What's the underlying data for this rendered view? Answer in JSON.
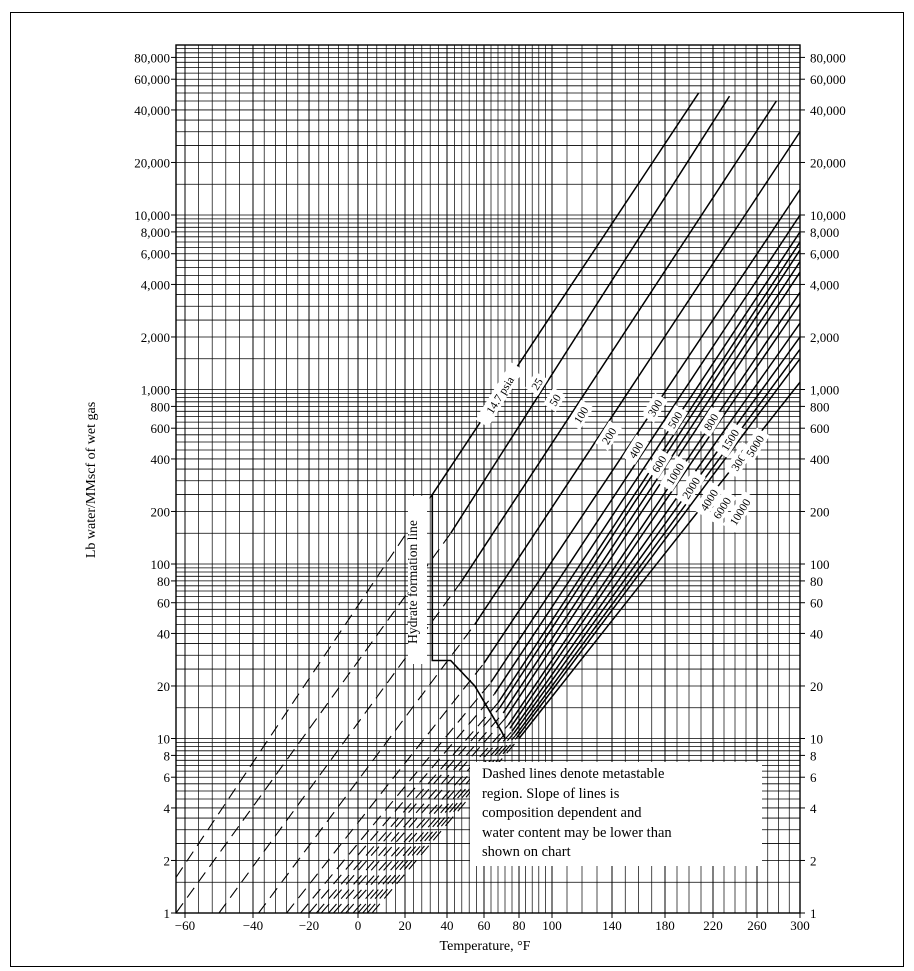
{
  "chart_data": {
    "type": "line",
    "title": "",
    "xlabel": "Temperature, °F",
    "ylabel": "Lb water/MMscf of wet gas",
    "x_unit": "°F",
    "y_scale": "log",
    "xlim": [
      -65,
      300
    ],
    "ylim": [
      1,
      100000
    ],
    "grid": true,
    "x_ticks": [
      -60,
      -40,
      -20,
      0,
      20,
      40,
      60,
      80,
      100,
      140,
      180,
      220,
      260,
      300
    ],
    "x_tick_labels": [
      "−60",
      "−40",
      "−20",
      "0",
      "20",
      "40",
      "60",
      "80",
      "100",
      "140",
      "180",
      "220",
      "260",
      "300"
    ],
    "y_ticks": [
      1,
      2,
      4,
      6,
      8,
      10,
      20,
      40,
      60,
      80,
      100,
      200,
      400,
      600,
      800,
      1000,
      2000,
      4000,
      6000,
      8000,
      10000,
      20000,
      40000,
      60000,
      80000
    ],
    "y_tick_labels": [
      "1",
      "2",
      "4",
      "6",
      "8",
      "10",
      "20",
      "40",
      "60",
      "80",
      "100",
      "200",
      "400",
      "600",
      "800",
      "1,000",
      "2,000",
      "4,000",
      "6,000",
      "8,000",
      "10,000",
      "20,000",
      "40,000",
      "60,000",
      "80,000"
    ],
    "series": [
      {
        "name": "14.7 psia",
        "label": "14.7 psia",
        "solid": [
          [
            33,
            250
          ],
          [
            208,
            50000
          ]
        ],
        "dashed_from": [
          -65,
          1.6
        ]
      },
      {
        "name": "25",
        "label": "25",
        "solid": [
          [
            42,
            150
          ],
          [
            235,
            48000
          ]
        ],
        "dashed_from": [
          -65,
          1.0
        ]
      },
      {
        "name": "50",
        "label": "50",
        "solid": [
          [
            48,
            80
          ],
          [
            278,
            45000
          ]
        ],
        "dashed_from": [
          -50,
          1.0
        ]
      },
      {
        "name": "100",
        "label": "100",
        "solid": [
          [
            55,
            45
          ],
          [
            300,
            30000
          ]
        ],
        "dashed_from": [
          -38,
          1.0
        ]
      },
      {
        "name": "200",
        "label": "200",
        "solid": [
          [
            60,
            27
          ],
          [
            300,
            14000
          ]
        ],
        "dashed_from": [
          -28,
          1.0
        ]
      },
      {
        "name": "300",
        "label": "300",
        "solid": [
          [
            64,
            21
          ],
          [
            300,
            10000
          ]
        ],
        "dashed_from": [
          -23,
          1.0
        ]
      },
      {
        "name": "400",
        "label": "400",
        "solid": [
          [
            66,
            18
          ],
          [
            300,
            8000
          ]
        ],
        "dashed_from": [
          -20,
          1.0
        ]
      },
      {
        "name": "500",
        "label": "500",
        "solid": [
          [
            68,
            16
          ],
          [
            300,
            7000
          ]
        ],
        "dashed_from": [
          -17,
          1.0
        ]
      },
      {
        "name": "600",
        "label": "600",
        "solid": [
          [
            69,
            15
          ],
          [
            300,
            6300
          ]
        ],
        "dashed_from": [
          -15,
          1.0
        ]
      },
      {
        "name": "800",
        "label": "800",
        "solid": [
          [
            71,
            14
          ],
          [
            300,
            5400
          ]
        ],
        "dashed_from": [
          -12,
          1.0
        ]
      },
      {
        "name": "1000",
        "label": "1000",
        "solid": [
          [
            72,
            13
          ],
          [
            300,
            4700
          ]
        ],
        "dashed_from": [
          -10,
          1.0
        ]
      },
      {
        "name": "1500",
        "label": "1500",
        "solid": [
          [
            74,
            12
          ],
          [
            300,
            3600
          ]
        ],
        "dashed_from": [
          -7,
          1.0
        ]
      },
      {
        "name": "2000",
        "label": "2000",
        "solid": [
          [
            75,
            11.5
          ],
          [
            300,
            3100
          ]
        ],
        "dashed_from": [
          -5,
          1.0
        ]
      },
      {
        "name": "3000",
        "label": "3000",
        "solid": [
          [
            76,
            11
          ],
          [
            300,
            2400
          ]
        ],
        "dashed_from": [
          -2,
          1.0
        ]
      },
      {
        "name": "4000",
        "label": "4000",
        "solid": [
          [
            77,
            10.7
          ],
          [
            300,
            2000
          ]
        ],
        "dashed_from": [
          0,
          1.0
        ]
      },
      {
        "name": "5000",
        "label": "5000",
        "solid": [
          [
            78,
            10.4
          ],
          [
            300,
            1700
          ]
        ],
        "dashed_from": [
          2,
          1.0
        ]
      },
      {
        "name": "6000",
        "label": "6000",
        "solid": [
          [
            79,
            10.2
          ],
          [
            300,
            1500
          ]
        ],
        "dashed_from": [
          4,
          1.0
        ]
      },
      {
        "name": "10000",
        "label": "10000",
        "solid": [
          [
            80,
            10
          ],
          [
            300,
            1100
          ]
        ],
        "dashed_from": [
          6,
          1.0
        ]
      }
    ],
    "hydrate_formation_line": {
      "label": "Hydrate formation line",
      "points": [
        [
          33,
          250
        ],
        [
          33,
          28
        ],
        [
          42,
          28
        ],
        [
          55,
          20
        ],
        [
          70,
          11
        ],
        [
          72,
          10
        ]
      ]
    },
    "annotation": {
      "lines": [
        "Dashed lines denote metastable",
        "region. Slope of lines is",
        "composition dependent and",
        "water content may be lower than",
        "shown on chart"
      ]
    }
  }
}
